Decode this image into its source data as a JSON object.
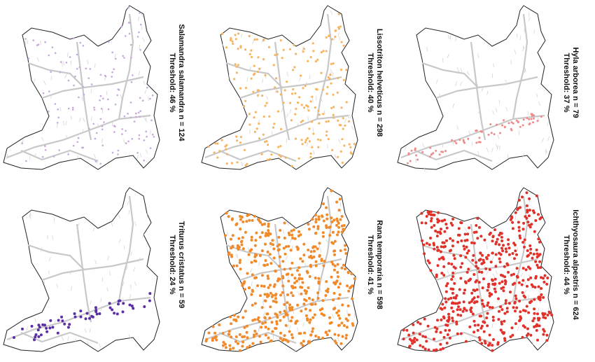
{
  "panels": [
    {
      "title": "Salamandra salamandra n = 124",
      "threshold": "Threshold: 46 %"
    },
    {
      "title": "Lissotriton helveticus n = 298",
      "threshold": "Threshold: 40 %"
    },
    {
      "title": "Hyla arborea n = 79",
      "threshold": "Threshold: 37 %"
    },
    {
      "title": "Triturus cristatus n = 59",
      "threshold": "Threshold: 24 %"
    },
    {
      "title": "Rana temporaria n = 598",
      "threshold": "Threshold: 41 %"
    },
    {
      "title": "Ichthyosaura alpestris n = 624",
      "threshold": "Threshold: 44 %"
    }
  ]
}
